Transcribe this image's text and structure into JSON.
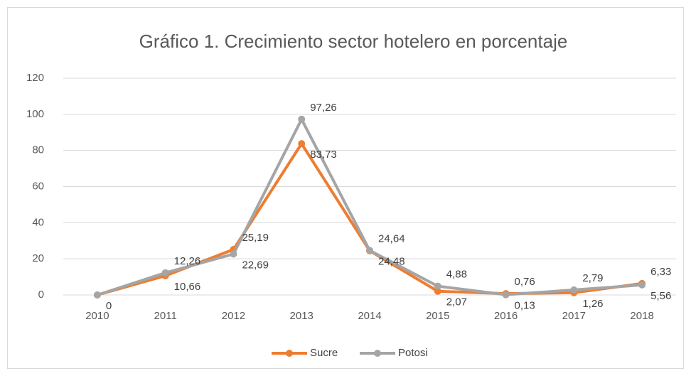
{
  "chart_data": {
    "type": "line",
    "title": "Gráfico 1. Crecimiento sector hotelero en porcentaje",
    "categories": [
      "2010",
      "2011",
      "2012",
      "2013",
      "2014",
      "2015",
      "2016",
      "2017",
      "2018"
    ],
    "series": [
      {
        "name": "Sucre",
        "color": "#ed7d31",
        "values": [
          0,
          10.66,
          25.19,
          83.73,
          24.48,
          2.07,
          0.76,
          1.26,
          6.33
        ],
        "value_labels": [
          null,
          "10,66",
          "25,19",
          "83,73",
          "24,48",
          "2,07",
          "0,76",
          "1,26",
          "6,33"
        ]
      },
      {
        "name": "Potosi",
        "color": "#a5a5a5",
        "values": [
          0,
          12.26,
          22.69,
          97.26,
          24.64,
          4.88,
          0.13,
          2.79,
          5.56
        ],
        "value_labels": [
          "0",
          "12,26",
          "22,69",
          "97,26",
          "24,64",
          "4,88",
          "0,13",
          "2,79",
          "5,56"
        ]
      }
    ],
    "ylim": [
      0,
      120
    ],
    "yticks": [
      0,
      20,
      40,
      60,
      80,
      100,
      120
    ],
    "grid": true,
    "legend": "bottom"
  }
}
